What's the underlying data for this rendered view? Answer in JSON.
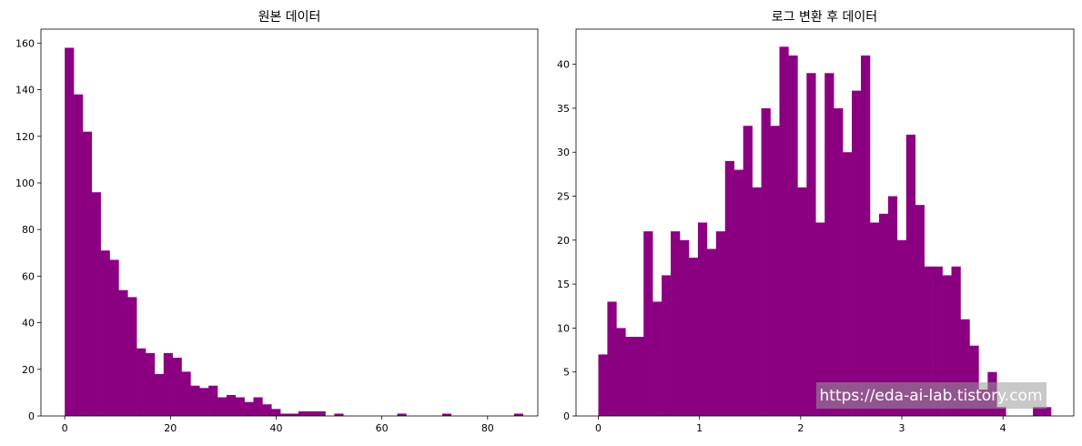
{
  "chart_data": [
    {
      "type": "bar",
      "title": "원본 데이터",
      "xlabel": "",
      "ylabel": "",
      "bin_start": 0.0,
      "bin_width": 1.7,
      "values": [
        158,
        138,
        122,
        96,
        71,
        67,
        54,
        51,
        29,
        27,
        18,
        27,
        25,
        19,
        13,
        12,
        13,
        8,
        9,
        8,
        6,
        8,
        5,
        3,
        1,
        1,
        2,
        2,
        2,
        0,
        1,
        0,
        0,
        0,
        0,
        0,
        0,
        1,
        0,
        0,
        0,
        0,
        1,
        0,
        0,
        0,
        0,
        0,
        0,
        0,
        1
      ],
      "xlim": [
        -4.5,
        89.5
      ],
      "ylim": [
        0,
        166
      ],
      "xticks": [
        0,
        20,
        40,
        60,
        80
      ],
      "xtick_labels": [
        "0",
        "20",
        "40",
        "60",
        "80"
      ],
      "yticks": [
        0,
        20,
        40,
        60,
        80,
        100,
        120,
        140,
        160
      ],
      "ytick_labels": [
        "0",
        "20",
        "40",
        "60",
        "80",
        "100",
        "120",
        "140",
        "160"
      ],
      "color": "#8b0081",
      "grid": false,
      "legend": false
    },
    {
      "type": "bar",
      "title": "로그 변환 후 데이터",
      "xlabel": "",
      "ylabel": "",
      "bin_start": 0.0,
      "bin_width": 0.0895,
      "values": [
        7,
        13,
        10,
        9,
        9,
        21,
        13,
        16,
        21,
        20,
        18,
        22,
        19,
        21,
        29,
        28,
        33,
        26,
        35,
        33,
        42,
        41,
        26,
        39,
        22,
        39,
        35,
        30,
        37,
        41,
        22,
        23,
        25,
        20,
        32,
        24,
        17,
        17,
        16,
        17,
        11,
        8,
        3,
        5,
        1,
        0,
        0,
        0,
        0,
        0
      ],
      "overlay_values": [
        0,
        0,
        0,
        0,
        0,
        0,
        0,
        0,
        0,
        0,
        0,
        0,
        0,
        0,
        0,
        0,
        0,
        0,
        0,
        0,
        0,
        0,
        0,
        0,
        0,
        0,
        0,
        0,
        0,
        0,
        0,
        0,
        0,
        0,
        0,
        0,
        0,
        0,
        0,
        0,
        0,
        0,
        0,
        0,
        0,
        0,
        0,
        0,
        1,
        1
      ],
      "xlim": [
        -0.22,
        4.7
      ],
      "ylim": [
        0,
        44
      ],
      "xticks": [
        0,
        1,
        2,
        3,
        4
      ],
      "xtick_labels": [
        "0",
        "1",
        "2",
        "3",
        "4"
      ],
      "yticks": [
        0,
        5,
        10,
        15,
        20,
        25,
        30,
        35,
        40
      ],
      "ytick_labels": [
        "0",
        "5",
        "10",
        "15",
        "20",
        "25",
        "30",
        "35",
        "40"
      ],
      "color": "#8b0081",
      "grid": false,
      "legend": false
    }
  ],
  "watermark": {
    "text": "https://eda-ai-lab.tistory.com",
    "color": "#ffffff"
  }
}
